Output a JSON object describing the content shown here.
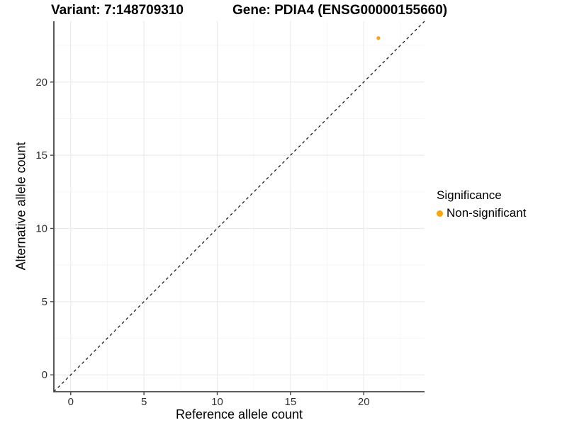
{
  "titles": {
    "variant": "Variant: 7:148709310",
    "gene": "Gene: PDIA4 (ENSG00000155660)"
  },
  "chart_data": {
    "type": "scatter",
    "xlabel": "Reference allele count",
    "ylabel": "Alternative allele count",
    "xlim": [
      -1.15,
      24.15
    ],
    "ylim": [
      -1.15,
      24.15
    ],
    "x_major_ticks": [
      0,
      5,
      10,
      15,
      20
    ],
    "y_major_ticks": [
      0,
      5,
      10,
      15,
      20
    ],
    "x_minor_ticks": [
      2.5,
      7.5,
      12.5,
      17.5,
      22.5
    ],
    "y_minor_ticks": [
      2.5,
      7.5,
      12.5,
      17.5,
      22.5
    ],
    "grid": true,
    "series": [
      {
        "name": "Non-significant",
        "color": "#FFA500",
        "points": [
          {
            "x": 21,
            "y": 23
          }
        ]
      }
    ],
    "reference_line": {
      "type": "identity",
      "equation": "y = x",
      "style": "dashed",
      "color": "#1a1a1a"
    },
    "colors": {
      "point": "#FFA500",
      "grid_major": "#ebebeb",
      "grid_minor": "#f6f6f6",
      "axis_line": "#474747",
      "tick_label": "#303030",
      "background": "#ffffff"
    },
    "legend_position": "right"
  },
  "legend": {
    "title": "Significance",
    "items": [
      {
        "label": "Non-significant",
        "color": "#FFA500"
      }
    ]
  }
}
